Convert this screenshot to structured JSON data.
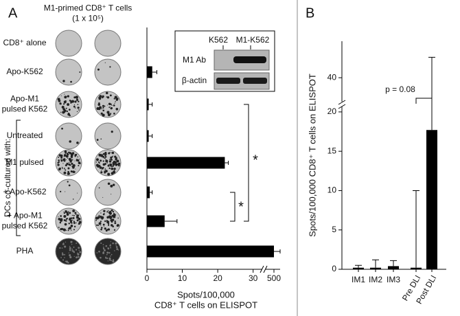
{
  "chart_data": [
    {
      "type": "bar",
      "orientation": "horizontal",
      "panel_label": "A",
      "column_header": "M1-primed CD8⁺ T cells\n(1 x 10⁵)",
      "categories": [
        "CD8⁺ alone",
        "Apo-K562",
        "Apo-M1\npulsed K562",
        "Untreated",
        "M1 pulsed",
        "+ Apo-K562",
        "+ Apo-M1\npulsed K562",
        "PHA"
      ],
      "values": [
        0,
        1.5,
        0.5,
        0.5,
        22,
        0.8,
        5,
        500
      ],
      "errors": [
        0,
        1.3,
        1,
        1,
        1,
        0.7,
        3.5,
        5
      ],
      "color": "#000000",
      "xlim": [
        0,
        505
      ],
      "axis_break": [
        32,
        495
      ],
      "xticks": [
        0,
        10,
        20,
        30,
        500
      ],
      "xlabel": "Spots/100,000\nCD8⁺ T cells on ELISPOT",
      "group_label": "DCs co-cultured with:",
      "annotations": [
        "*",
        "*"
      ],
      "inset": {
        "columns": [
          "K562",
          "M1-K562"
        ],
        "rows": [
          "M1 Ab",
          "β-actin"
        ]
      }
    },
    {
      "type": "bar",
      "orientation": "vertical",
      "panel_label": "B",
      "categories": [
        "IM1",
        "IM2",
        "IM3",
        "Pre DLI",
        "Post DLI"
      ],
      "values": [
        0.2,
        0.2,
        0.4,
        0.2,
        17.7
      ],
      "errors": [
        0.3,
        1.0,
        0.7,
        9.8,
        25.1
      ],
      "color": "#000000",
      "ylim": [
        0,
        45
      ],
      "axis_break": [
        22,
        37
      ],
      "yticks": [
        0,
        5,
        10,
        15,
        20,
        40
      ],
      "ylabel": "Spots/100,000 CD8⁺ T cells on ELISPOT",
      "annotations": [
        "p = 0.08"
      ]
    }
  ]
}
